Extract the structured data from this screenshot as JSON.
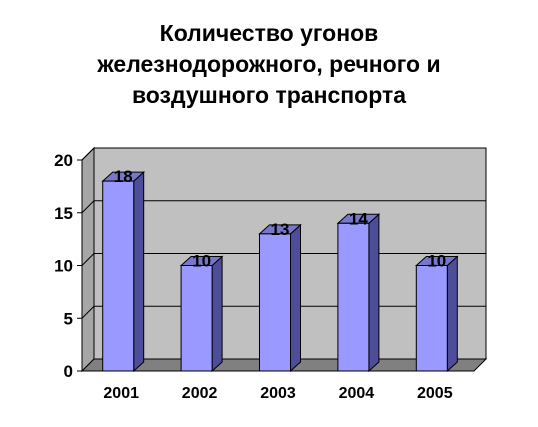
{
  "chart_data": {
    "type": "bar",
    "title_lines": [
      "Количество угонов",
      "железнодорожного, речного и",
      "воздушного транспорта"
    ],
    "categories": [
      "2001",
      "2002",
      "2003",
      "2004",
      "2005"
    ],
    "values": [
      18,
      10,
      13,
      14,
      10
    ],
    "data_labels": [
      "18",
      "10",
      "13",
      "14",
      "10"
    ],
    "yticks": [
      "0",
      "5",
      "10",
      "15",
      "20"
    ],
    "ylim": [
      0,
      20
    ],
    "grid": true,
    "legend": "none",
    "style": "3d-column",
    "colors": {
      "bar_front": "#9999ff",
      "bar_side": "#4d4d99",
      "bar_top": "#7777cc",
      "wall": "#c0c0c0",
      "floor": "#808080"
    }
  }
}
